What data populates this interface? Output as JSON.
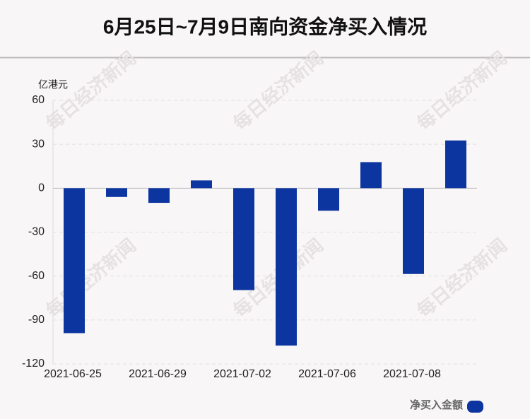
{
  "chart_data": {
    "type": "bar",
    "title": "6月25日~7月9日南向资金净买入情况",
    "y_label": "亿港元",
    "watermark": "每日经济新闻",
    "categories": [
      "2021-06-25",
      null,
      "2021-06-29",
      null,
      "2021-07-02",
      null,
      "2021-07-06",
      null,
      "2021-07-08",
      null
    ],
    "series": [
      {
        "name": "净买入金额",
        "color": "#0d35a0",
        "values": [
          -99,
          -6,
          -10,
          5.3,
          -69.6,
          -107.5,
          -15.4,
          17.8,
          -58.6,
          32.6
        ]
      }
    ],
    "ylim": [
      -120,
      60
    ],
    "yticks": [
      -120,
      -90,
      -60,
      -30,
      0,
      30,
      60
    ],
    "grid": true,
    "legend": "bottom-right"
  }
}
